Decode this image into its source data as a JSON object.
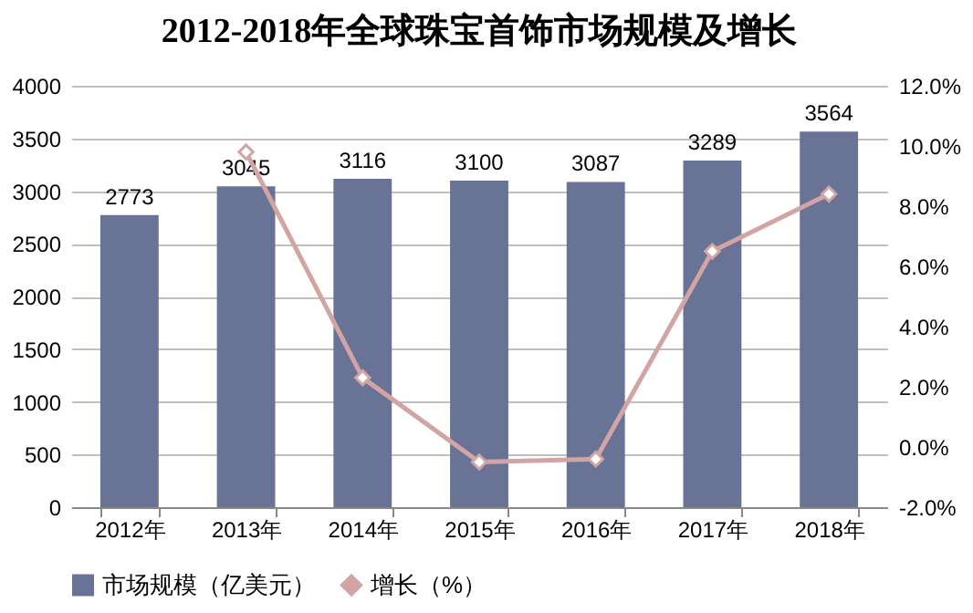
{
  "chart_data": {
    "type": "bar",
    "title": "2012-2018年全球珠宝首饰市场规模及增长",
    "categories": [
      "2012年",
      "2013年",
      "2014年",
      "2015年",
      "2016年",
      "2017年",
      "2018年"
    ],
    "series": [
      {
        "name": "市场规模（亿美元）",
        "color": "#687396",
        "values": [
          2773,
          3045,
          3116,
          3100,
          3087,
          3289,
          3564
        ],
        "value_labels": [
          "2773",
          "3045",
          "3116",
          "3100",
          "3087",
          "3289",
          "3564"
        ]
      },
      {
        "name": "增长（%）",
        "type": "line",
        "axis": "y2",
        "color": "#d3a4a4",
        "marker": "diamond",
        "values": [
          null,
          9.8,
          2.3,
          -0.5,
          -0.4,
          6.5,
          8.4
        ]
      }
    ],
    "ylim": [
      0,
      4000
    ],
    "yticks": [
      0,
      500,
      1000,
      1500,
      2000,
      2500,
      3000,
      3500,
      4000
    ],
    "y2lim": [
      -2,
      12
    ],
    "y2ticks": [
      {
        "value": -2,
        "label": "-2.0%"
      },
      {
        "value": 0,
        "label": "0.0%"
      },
      {
        "value": 2,
        "label": "2.0%"
      },
      {
        "value": 4,
        "label": "4.0%"
      },
      {
        "value": 6,
        "label": "6.0%"
      },
      {
        "value": 8,
        "label": "8.0%"
      },
      {
        "value": 10,
        "label": "10.0%"
      },
      {
        "value": 12,
        "label": "12.0%"
      }
    ],
    "grid": "y",
    "legend": "bottom"
  }
}
